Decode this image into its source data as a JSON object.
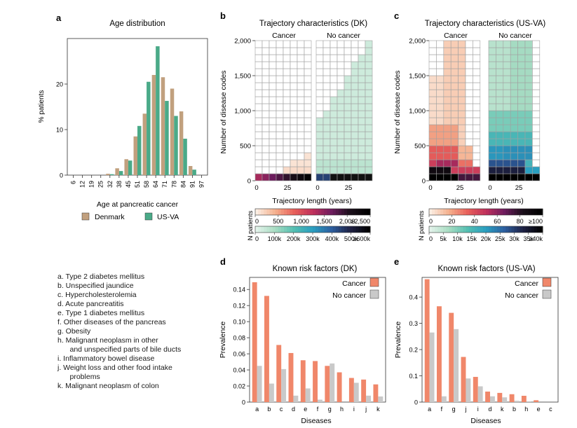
{
  "panels": {
    "a": "a",
    "b": "b",
    "c": "c",
    "d": "d",
    "e": "e"
  },
  "colors": {
    "denmark": "#c1a07e",
    "usva": "#4aaa88",
    "cancer": "#f0876a",
    "no_cancer": "#c9c9c9",
    "grid_stroke": "#a0a0a0"
  },
  "chart_data": [
    {
      "id": "a",
      "type": "bar",
      "title": "Age distribution",
      "xlabel": "Age at pancreatic cancer",
      "ylabel": "% patients",
      "ylim": [
        0,
        30
      ],
      "yticks": [
        "0",
        "10",
        "20"
      ],
      "yticks_values": [
        0,
        10,
        20
      ],
      "categories": [
        "6",
        "12",
        "19",
        "25",
        "32",
        "38",
        "45",
        "51",
        "58",
        "64",
        "71",
        "78",
        "84",
        "91",
        "97"
      ],
      "series": [
        {
          "name": "Denmark",
          "values": [
            0,
            0,
            0,
            0,
            0.3,
            1.5,
            3.5,
            8.5,
            13.5,
            22,
            21.5,
            19,
            14,
            2,
            0
          ]
        },
        {
          "name": "US-VA",
          "values": [
            0,
            0,
            0,
            0,
            0.2,
            0.9,
            3.2,
            10.8,
            20.5,
            28.3,
            16.3,
            13,
            8,
            1.2,
            0
          ]
        }
      ],
      "legend": [
        "Denmark",
        "US-VA"
      ]
    },
    {
      "id": "b",
      "type": "heatmap",
      "title": "Trajectory characteristics (DK)",
      "subtitles": [
        "Cancer",
        "No cancer"
      ],
      "xlabel": "Trajectory length (years)",
      "ylabel": "Number of disease codes",
      "yticks": [
        "0",
        "500",
        "1,000",
        "1,500",
        "2,000"
      ],
      "xticks": [
        "0",
        "25"
      ],
      "colorbar_title": "N patients",
      "colorbar_cancer_ticks": [
        "0",
        "500",
        "1,000",
        "1,500",
        "2,000",
        "≥2,500"
      ],
      "colorbar_nocancer_ticks": [
        "0",
        "100k",
        "200k",
        "300k",
        "400k",
        "500k",
        "≥600k"
      ]
    },
    {
      "id": "c",
      "type": "heatmap",
      "title": "Trajectory characteristics (US-VA)",
      "subtitles": [
        "Cancer",
        "No cancer"
      ],
      "xlabel": "Trajectory length (years)",
      "ylabel": "Number of disease codes",
      "yticks": [
        "0",
        "500",
        "1,000",
        "1,500",
        "2,000"
      ],
      "xticks": [
        "0",
        "25"
      ],
      "colorbar_title": "N patients",
      "colorbar_cancer_ticks": [
        "0",
        "20",
        "40",
        "60",
        "80",
        "≥100"
      ],
      "colorbar_nocancer_ticks": [
        "0",
        "5k",
        "10k",
        "15k",
        "20k",
        "25k",
        "30k",
        "35k",
        "≥40k"
      ]
    },
    {
      "id": "d",
      "type": "bar",
      "title": "Known risk factors (DK)",
      "xlabel": "Diseases",
      "ylabel": "Prevalence",
      "ylim": [
        0,
        0.155
      ],
      "yticks": [
        "0",
        "0.02",
        "0.04",
        "0.06",
        "0.08",
        "0.10",
        "0.12",
        "0.14"
      ],
      "yticks_values": [
        0,
        0.02,
        0.04,
        0.06,
        0.08,
        0.1,
        0.12,
        0.14
      ],
      "categories": [
        "a",
        "b",
        "c",
        "d",
        "e",
        "f",
        "g",
        "h",
        "i",
        "j",
        "k"
      ],
      "series": [
        {
          "name": "Cancer",
          "values": [
            0.149,
            0.132,
            0.071,
            0.061,
            0.052,
            0.051,
            0.045,
            0.037,
            0.03,
            0.028,
            0.022
          ]
        },
        {
          "name": "No cancer",
          "values": [
            0.045,
            0.023,
            0.041,
            0.008,
            0.017,
            0.003,
            0.048,
            0.0,
            0.024,
            0.008,
            0.007
          ]
        }
      ],
      "legend": [
        "Cancer",
        "No cancer"
      ]
    },
    {
      "id": "e",
      "type": "bar",
      "title": "Known risk factors (US-VA)",
      "xlabel": "Diseases",
      "ylabel": "Prevalence",
      "ylim": [
        0,
        0.475
      ],
      "yticks": [
        "0",
        "0.1",
        "0.2",
        "0.3",
        "0.4"
      ],
      "yticks_values": [
        0,
        0.1,
        0.2,
        0.3,
        0.4
      ],
      "categories": [
        "a",
        "f",
        "g",
        "j",
        "i",
        "d",
        "k",
        "b",
        "h",
        "e",
        "c"
      ],
      "series": [
        {
          "name": "Cancer",
          "values": [
            0.468,
            0.365,
            0.34,
            0.172,
            0.096,
            0.04,
            0.035,
            0.03,
            0.024,
            0.007,
            0.0
          ]
        },
        {
          "name": "No cancer",
          "values": [
            0.265,
            0.022,
            0.278,
            0.09,
            0.06,
            0.022,
            0.018,
            0.005,
            0.003,
            0.0,
            0.0
          ]
        }
      ],
      "legend": [
        "Cancer",
        "No cancer"
      ]
    }
  ],
  "disease_key": [
    "a.  Type 2 diabetes mellitus",
    "b.  Unspecified jaundice",
    "c.  Hypercholesterolemia",
    "d.  Acute pancreatitis",
    "e.  Type 1 diabetes mellitus",
    "f.   Other diseases of the pancreas",
    "g.  Obesity",
    "h.  Malignant neoplasm in other",
    "      and unspecified parts of bile ducts",
    "i.   Inflammatory bowel disease",
    "j.   Weight loss and other food intake",
    "      problems",
    "k.  Malignant neoplasm of colon"
  ]
}
